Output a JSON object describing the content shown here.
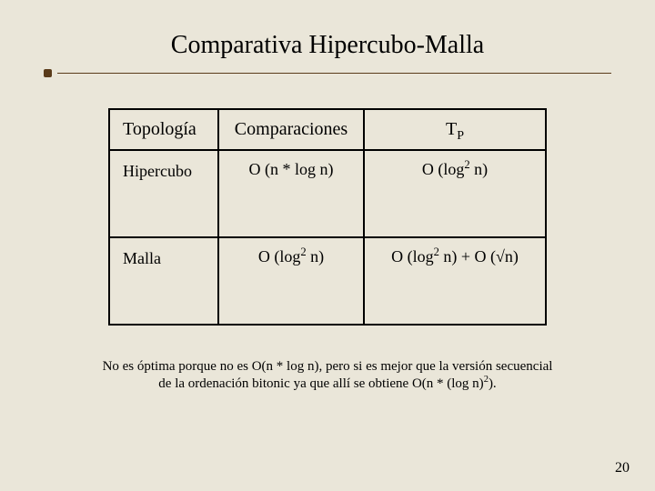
{
  "title": "Comparativa Hipercubo-Malla",
  "table": {
    "headers": {
      "topologia": "Topología",
      "comparaciones": "Comparaciones",
      "tp_prefix": "T",
      "tp_sub": "P"
    },
    "rows": [
      {
        "topologia": "Hipercubo",
        "comparaciones": "O (n * log n)",
        "tp_pre": "O (log",
        "tp_sup": "2",
        "tp_post": " n)",
        "tp_tail": ""
      },
      {
        "topologia": "Malla",
        "comparaciones_pre": "O (log",
        "comparaciones_sup": "2",
        "comparaciones_post": " n)",
        "tp_pre": "O (log",
        "tp_sup": "2",
        "tp_post": " n) + O (√n)",
        "tp_tail": ""
      }
    ]
  },
  "footnote": {
    "line1": "No es óptima porque no es O(n * log n), pero si es mejor que la versión secuencial",
    "line2_a": "de la ordenación bitonic ya que allí se obtiene O(n * (log n)",
    "line2_sup": "2",
    "line2_b": ")."
  },
  "page_number": "20",
  "colors": {
    "background": "#eae6d9",
    "rule": "#5a3b1a",
    "text": "#000000",
    "border": "#000000"
  }
}
